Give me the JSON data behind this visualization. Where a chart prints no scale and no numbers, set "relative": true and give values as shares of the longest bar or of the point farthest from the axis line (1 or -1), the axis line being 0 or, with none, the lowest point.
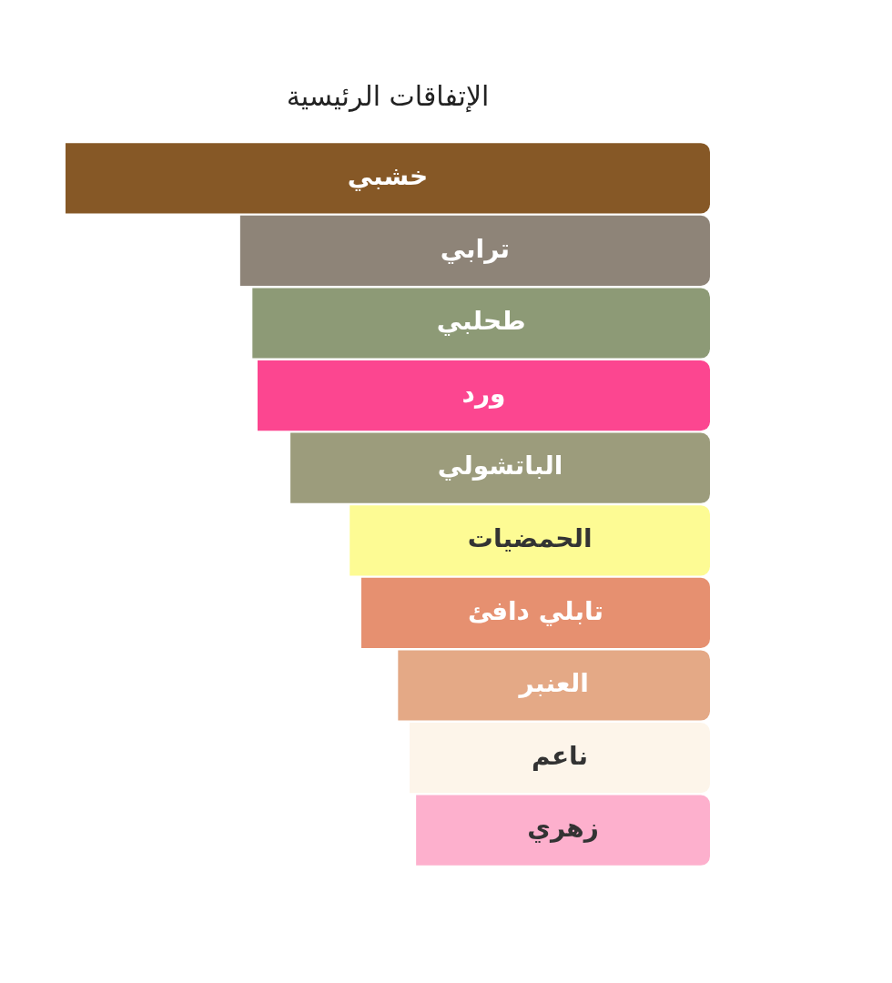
{
  "chart_data": {
    "type": "bar",
    "orientation": "horizontal",
    "relative": true,
    "title": "الإتفاقات الرئيسية",
    "categories": [
      "خشبي",
      "ترابي",
      "طحلبي",
      "ورد",
      "الباتشولي",
      "الحمضيات",
      "تابلي دافئ",
      "العنبر",
      "ناعم",
      "زهري"
    ],
    "values": [
      1,
      0.729,
      0.71,
      0.702,
      0.651,
      0.559,
      0.541,
      0.484,
      0.466,
      0.456
    ],
    "colors": [
      "#865826",
      "#8e8478",
      "#8d9a76",
      "#fc4690",
      "#9c9c7c",
      "#fdfb94",
      "#e69070",
      "#e4a986",
      "#fdf5ea",
      "#fdb0cd"
    ],
    "legend": false
  }
}
